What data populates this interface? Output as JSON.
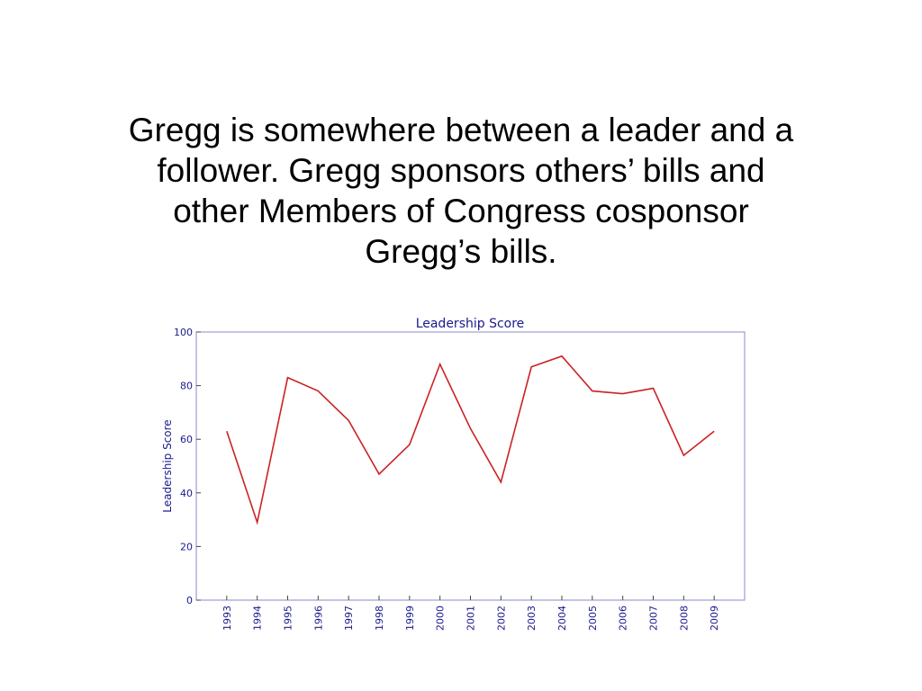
{
  "slide": {
    "heading_lines": [
      "Gregg is somewhere between a leader and a",
      "follower. Gregg sponsors others’ bills and",
      "other Members of Congress cosponsor",
      "Gregg’s bills."
    ]
  },
  "chart_data": {
    "type": "line",
    "title": "Leadership Score",
    "y_label": "Leadership Score",
    "categories": [
      "1993",
      "1994",
      "1995",
      "1996",
      "1997",
      "1998",
      "1999",
      "2000",
      "2001",
      "2002",
      "2003",
      "2004",
      "2005",
      "2006",
      "2007",
      "2008",
      "2009"
    ],
    "series": [
      {
        "name": "Leadership Score",
        "color": "#cc2222",
        "values": [
          63,
          29,
          83,
          78,
          67,
          47,
          58,
          88,
          64,
          44,
          87,
          91,
          78,
          77,
          79,
          54,
          63
        ]
      }
    ],
    "ylim": [
      0,
      100
    ],
    "yticks": [
      0,
      20,
      40,
      60,
      80,
      100
    ],
    "grid": false
  }
}
